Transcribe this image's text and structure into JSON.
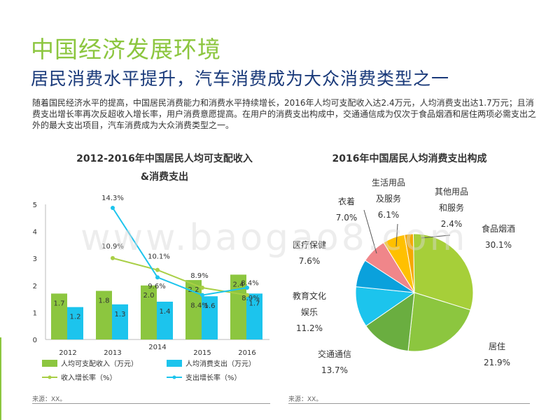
{
  "header": {
    "title": "中国经济发展环境",
    "subtitle": "居民消费水平提升，汽车消费成为大众消费类型之一",
    "body": "随着国民经济水平的提高，中国居民消费能力和消费水平持续增长，2016年人均可支配收入达2.4万元，人均消费支出达1.7万元；且消费支出增长率再次反超收入增长率，用户消费意愿提高。在用户的消费支出构成中，交通通信成为仅次于食品烟酒和居住两项必需支出之外的最大支出项目，汽车消费成为大众消费类型之一。"
  },
  "watermark": "www.baogao8.com",
  "colors": {
    "green": "#8cc63f",
    "blue": "#1cc4ed",
    "income_line": "#a9cf46",
    "expense_line": "#1cc4ed"
  },
  "chart_data": [
    {
      "type": "bar",
      "title_line1": "2012-2016年中国居民人均可支配收入",
      "title_line2": "&消费支出",
      "categories": [
        "2012",
        "2013",
        "2014",
        "2015",
        "2016"
      ],
      "ylim": [
        0,
        5
      ],
      "yticks": [
        "0",
        "1",
        "2",
        "3",
        "4",
        "5"
      ],
      "series": [
        {
          "name": "人均可支配收入（万元）",
          "kind": "bar",
          "color": "#8cc63f",
          "values": [
            1.7,
            1.8,
            2.0,
            2.2,
            2.4
          ],
          "labels": [
            "1.7",
            "1.8",
            "2.0",
            "2.2",
            "2.4"
          ]
        },
        {
          "name": "人均消费支出（万元）",
          "kind": "bar",
          "color": "#1cc4ed",
          "values": [
            1.2,
            1.3,
            1.4,
            1.6,
            1.7
          ],
          "labels": [
            "1.2",
            "1.3",
            "1.4",
            "1.6",
            "1.7"
          ]
        }
      ],
      "lines": [
        {
          "name": "收入增长率（%）",
          "color": "#a9cf46",
          "values": [
            null,
            10.9,
            10.1,
            8.9,
            8.4
          ],
          "labels": [
            "",
            "10.9%",
            "10.1%",
            "8.9%",
            "8.4%"
          ]
        },
        {
          "name": "支出增长率（%）",
          "color": "#1cc4ed",
          "values": [
            null,
            14.3,
            9.6,
            8.4,
            8.9
          ],
          "labels": [
            "",
            "14.3%",
            "9.6%",
            "8.4%",
            "8.9%"
          ]
        }
      ],
      "source": "来源：XX。"
    },
    {
      "type": "pie",
      "title": "2016年中国居民人均消费支出构成",
      "slices": [
        {
          "name": "食品烟酒",
          "value": 30.1,
          "label": "30.1%",
          "color": "#a6cf39"
        },
        {
          "name": "居住",
          "value": 21.9,
          "label": "21.9%",
          "color": "#8cc63f"
        },
        {
          "name": "交通通信",
          "value": 13.7,
          "label": "13.7%",
          "color": "#6aae40"
        },
        {
          "name": "教育文化娱乐",
          "value": 11.2,
          "label": "11.2%",
          "color": "#1cc4ed"
        },
        {
          "name": "医疗保健",
          "value": 7.6,
          "label": "7.6%",
          "color": "#0aa1dc"
        },
        {
          "name": "衣着",
          "value": 7.0,
          "label": "7.0%",
          "color": "#f0868a"
        },
        {
          "name": "生活用品及服务",
          "value": 6.1,
          "label": "6.1%",
          "color": "#ffc000"
        },
        {
          "name": "其他用品和服务",
          "value": 2.4,
          "label": "2.4%",
          "color": "#f5a800"
        }
      ],
      "pie_labels": {
        "food": {
          "l1": "食品烟酒",
          "pct": "30.1%"
        },
        "housing": {
          "l1": "居住",
          "pct": "21.9%"
        },
        "transport": {
          "l1": "交通通信",
          "pct": "13.7%"
        },
        "education": {
          "l1": "教育文化",
          "l2": "娱乐",
          "pct": "11.2%"
        },
        "medical": {
          "l1": "医疗保健",
          "pct": "7.6%"
        },
        "clothing": {
          "l1": "衣着",
          "pct": "7.0%"
        },
        "daily": {
          "l1": "生活用品",
          "l2": "及服务",
          "pct": "6.1%"
        },
        "other": {
          "l1": "其他用品",
          "l2": "和服务",
          "pct": "2.4%"
        }
      },
      "source": "来源：XX。"
    }
  ]
}
